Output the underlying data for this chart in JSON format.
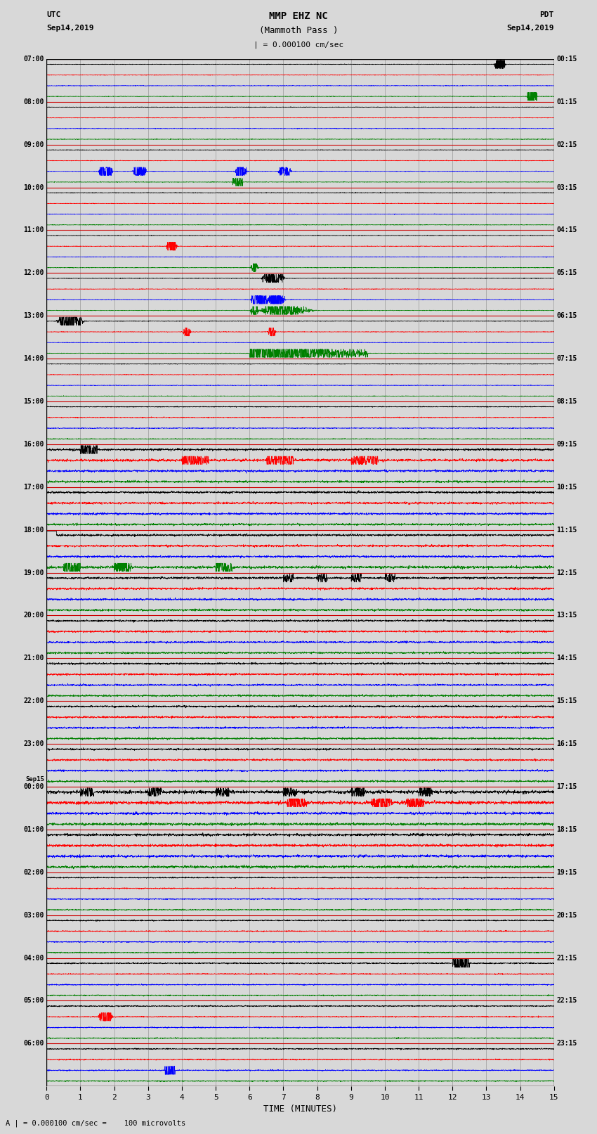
{
  "title_line1": "MMP EHZ NC",
  "title_line2": "(Mammoth Pass )",
  "title_scale": "| = 0.000100 cm/sec",
  "left_header_line1": "UTC",
  "left_header_line2": "Sep14,2019",
  "right_header_line1": "PDT",
  "right_header_line2": "Sep14,2019",
  "bottom_label": "TIME (MINUTES)",
  "bottom_note": "A | = 0.000100 cm/sec =    100 microvolts",
  "utc_times": [
    "07:00",
    "08:00",
    "09:00",
    "10:00",
    "11:00",
    "12:00",
    "13:00",
    "14:00",
    "15:00",
    "16:00",
    "17:00",
    "18:00",
    "19:00",
    "20:00",
    "21:00",
    "22:00",
    "23:00",
    "Sep15\n00:00",
    "01:00",
    "02:00",
    "03:00",
    "04:00",
    "05:00",
    "06:00"
  ],
  "pdt_times": [
    "00:15",
    "01:15",
    "02:15",
    "03:15",
    "04:15",
    "05:15",
    "06:15",
    "07:15",
    "08:15",
    "09:15",
    "10:15",
    "11:15",
    "12:15",
    "13:15",
    "14:15",
    "15:15",
    "16:15",
    "17:15",
    "18:15",
    "19:15",
    "20:15",
    "21:15",
    "22:15",
    "23:15"
  ],
  "colors": [
    "black",
    "red",
    "blue",
    "green"
  ],
  "n_traces": 96,
  "minutes": 15,
  "background": "#d8d8d8",
  "grid_color": "#999999",
  "separator_color": "#cc0000",
  "trace_amplitude": 0.38,
  "seed": 42
}
